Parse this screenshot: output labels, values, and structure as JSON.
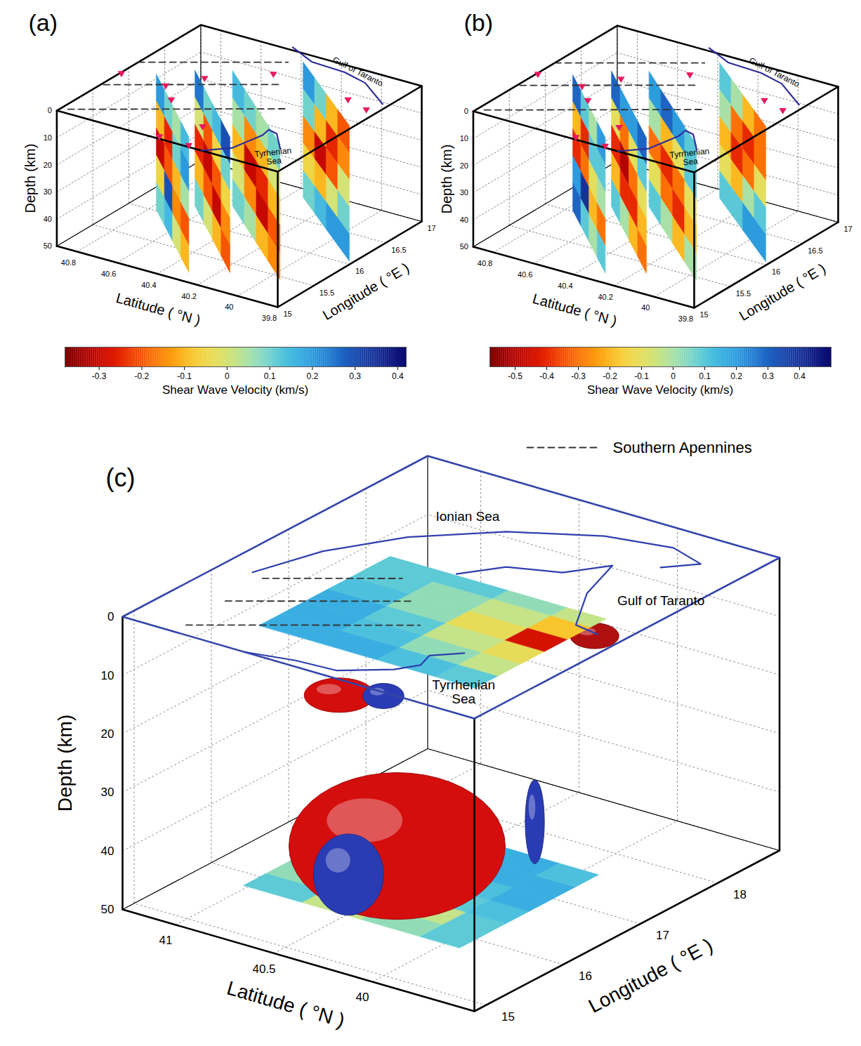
{
  "chart_data": [
    {
      "type": "3d_slices",
      "panel": "(a)",
      "xlabel": "Longitude ( °E )",
      "ylabel": "Latitude ( °N )",
      "zlabel": "Depth (km)",
      "xlim": [
        15,
        17
      ],
      "ylim": [
        39.8,
        40.9
      ],
      "zlim": [
        0,
        50
      ],
      "xticks": [
        15,
        15.5,
        16,
        16.5,
        17
      ],
      "yticks": [
        39.8,
        40,
        40.2,
        40.4,
        40.6,
        40.8
      ],
      "zticks": [
        0,
        10,
        20,
        30,
        40,
        50
      ],
      "grid": true,
      "colorbar": {
        "label": "Shear Wave Velocity (km/s)",
        "lim": [
          -0.38,
          0.42
        ],
        "ticks": [
          -0.3,
          -0.2,
          -0.1,
          0,
          0.1,
          0.2,
          0.3,
          0.4
        ]
      },
      "depth_edges": [
        0,
        10,
        20,
        30,
        40,
        50
      ],
      "slices": [
        {
          "start": [
            16.02,
            40.77
          ],
          "end": [
            15.16,
            40.3
          ],
          "values": [
            [
              0.2,
              0.1,
              0.05,
              0.15
            ],
            [
              -0.1,
              -0.25,
              0.1,
              0.2
            ],
            [
              -0.3,
              -0.2,
              -0.1,
              0.05
            ],
            [
              -0.05,
              0.3,
              -0.15,
              -0.2
            ],
            [
              0.1,
              0.15,
              0,
              -0.1
            ]
          ]
        },
        {
          "start": [
            16.25,
            40.66
          ],
          "end": [
            15.34,
            40.16
          ],
          "values": [
            [
              0.25,
              0.1,
              0.15,
              0.3
            ],
            [
              0,
              -0.2,
              -0.05,
              0.1
            ],
            [
              -0.25,
              -0.3,
              -0.2,
              -0.05
            ],
            [
              -0.1,
              -0.2,
              -0.3,
              -0.15
            ],
            [
              0.1,
              0,
              -0.1,
              -0.2
            ]
          ]
        },
        {
          "start": [
            16.41,
            40.53
          ],
          "end": [
            15.45,
            39.95
          ],
          "values": [
            [
              0.15,
              0.1,
              0.05,
              0.1
            ],
            [
              0.05,
              -0.15,
              -0.1,
              0
            ],
            [
              -0.1,
              -0.3,
              -0.25,
              -0.1
            ],
            [
              0,
              -0.15,
              -0.3,
              -0.2
            ],
            [
              0.1,
              0.05,
              -0.1,
              -0.15
            ]
          ]
        },
        {
          "start": [
            16.86,
            40.34
          ],
          "end": [
            16.05,
            39.82
          ],
          "values": [
            [
              0.2,
              0.1,
              -0.1,
              -0.2
            ],
            [
              0.1,
              -0.1,
              -0.25,
              -0.15
            ],
            [
              -0.15,
              -0.3,
              -0.2,
              0
            ],
            [
              -0.05,
              -0.1,
              0,
              0.1
            ],
            [
              0.1,
              0.15,
              0.2,
              0.2
            ]
          ]
        }
      ],
      "stations": {
        "lon": [
          15.87,
          15.87,
          16.16,
          16.53,
          15.67,
          15.03,
          15.02,
          15.38,
          16.45,
          16.37
        ],
        "lat": [
          40.89,
          40.67,
          40.58,
          40.37,
          40.57,
          40.4,
          40.25,
          40.31,
          39.97,
          39.85
        ],
        "color": "#e8185d",
        "marker": "triangle-down"
      },
      "dashed_lines": {
        "color": "#333333",
        "line_style": "dashed",
        "lines": [
          [
            [
              16.13,
              40.9
            ],
            [
              16.79,
              40.39
            ]
          ],
          [
            [
              15.62,
              40.89
            ],
            [
              16.4,
              40.29
            ]
          ],
          [
            [
              15.07,
              40.87
            ],
            [
              16.04,
              40.13
            ]
          ]
        ]
      },
      "coastlines": {
        "color": "#2e2e9a",
        "lines": [
          [
            [
              17.05,
              40.46
            ],
            [
              16.9,
              40.31
            ],
            [
              16.88,
              40.14
            ],
            [
              16.8,
              40.01
            ],
            [
              16.54,
              39.83
            ]
          ],
          [
            [
              15.0,
              40.18
            ],
            [
              15.18,
              40.09
            ],
            [
              15.51,
              40.06
            ],
            [
              15.63,
              40.07
            ],
            [
              15.6,
              40.02
            ],
            [
              15.37,
              39.92
            ]
          ]
        ]
      },
      "labels": [
        {
          "text": "Gulf of Taranto",
          "lon": 16.95,
          "lat": 40.1
        },
        {
          "text": "Tyrhenian Sea",
          "lon": 15.22,
          "lat": 39.9
        }
      ]
    },
    {
      "type": "3d_slices",
      "panel": "(b)",
      "xlabel": "Longitude ( °E )",
      "ylabel": "Latitude ( °N )",
      "zlabel": "Depth (km)",
      "xlim": [
        15,
        17
      ],
      "ylim": [
        39.8,
        40.9
      ],
      "zlim": [
        0,
        50
      ],
      "xticks": [
        15,
        15.5,
        16,
        16.5,
        17
      ],
      "yticks": [
        39.8,
        40,
        40.2,
        40.4,
        40.6,
        40.8
      ],
      "zticks": [
        0,
        10,
        20,
        30,
        40,
        50
      ],
      "grid": true,
      "colorbar": {
        "label": "Shear Wave Velocity (km/s)",
        "lim": [
          -0.58,
          0.5
        ],
        "ticks": [
          -0.5,
          -0.4,
          -0.3,
          -0.2,
          -0.1,
          0,
          0.1,
          0.2,
          0.3,
          0.4
        ]
      },
      "depth_edges": [
        0,
        10,
        20,
        30,
        40,
        50
      ],
      "slices": [
        {
          "start": [
            16.02,
            40.77
          ],
          "end": [
            15.16,
            40.3
          ],
          "values": [
            [
              0.3,
              0.1,
              0,
              0.2
            ],
            [
              -0.2,
              -0.4,
              0.1,
              0.1
            ],
            [
              -0.4,
              -0.3,
              -0.1,
              0
            ],
            [
              0.2,
              0.4,
              -0.2,
              -0.3
            ],
            [
              0.3,
              0.1,
              0,
              0.1
            ]
          ]
        },
        {
          "start": [
            16.25,
            40.66
          ],
          "end": [
            15.34,
            40.16
          ],
          "values": [
            [
              0.3,
              0.2,
              0.2,
              0.3
            ],
            [
              -0.1,
              -0.3,
              -0.1,
              0.1
            ],
            [
              -0.4,
              -0.5,
              -0.3,
              -0.1
            ],
            [
              -0.2,
              -0.4,
              -0.4,
              -0.2
            ],
            [
              0.1,
              0,
              -0.2,
              -0.3
            ]
          ]
        },
        {
          "start": [
            16.41,
            40.53
          ],
          "end": [
            15.45,
            39.95
          ],
          "values": [
            [
              0.2,
              0.3,
              0.2,
              0.1
            ],
            [
              0,
              -0.2,
              -0.1,
              0.1
            ],
            [
              -0.3,
              -0.4,
              -0.3,
              -0.1
            ],
            [
              -0.1,
              -0.3,
              -0.4,
              -0.2
            ],
            [
              0.1,
              0,
              -0.2,
              0
            ]
          ]
        },
        {
          "start": [
            16.86,
            40.34
          ],
          "end": [
            16.05,
            39.82
          ],
          "values": [
            [
              0.1,
              0,
              -0.2,
              -0.3
            ],
            [
              0,
              -0.3,
              -0.4,
              -0.3
            ],
            [
              -0.2,
              -0.4,
              -0.3,
              -0.1
            ],
            [
              -0.1,
              -0.2,
              0,
              0.1
            ],
            [
              0.1,
              0.1,
              0.2,
              0.2
            ]
          ]
        }
      ],
      "stations": {
        "lon": [
          15.87,
          15.87,
          16.16,
          16.53,
          15.67,
          15.03,
          15.02,
          15.38,
          16.45,
          16.37
        ],
        "lat": [
          40.89,
          40.67,
          40.58,
          40.37,
          40.57,
          40.4,
          40.25,
          40.31,
          39.97,
          39.85
        ],
        "color": "#e8185d",
        "marker": "triangle-down"
      },
      "dashed_lines": {
        "color": "#333333",
        "line_style": "dashed",
        "lines": [
          [
            [
              16.13,
              40.9
            ],
            [
              16.79,
              40.39
            ]
          ],
          [
            [
              15.62,
              40.89
            ],
            [
              16.4,
              40.29
            ]
          ],
          [
            [
              15.07,
              40.87
            ],
            [
              16.04,
              40.13
            ]
          ]
        ]
      },
      "coastlines": {
        "color": "#2e2e9a",
        "lines": [
          [
            [
              17.05,
              40.46
            ],
            [
              16.9,
              40.31
            ],
            [
              16.88,
              40.14
            ],
            [
              16.8,
              40.01
            ],
            [
              16.54,
              39.83
            ]
          ],
          [
            [
              15.0,
              40.18
            ],
            [
              15.18,
              40.09
            ],
            [
              15.51,
              40.06
            ],
            [
              15.63,
              40.07
            ],
            [
              15.6,
              40.02
            ],
            [
              15.37,
              39.92
            ]
          ]
        ]
      },
      "labels": [
        {
          "text": "Gulf of Taranto",
          "lon": 16.95,
          "lat": 40.1
        },
        {
          "text": "Tyrrhenian Sea",
          "lon": 15.22,
          "lat": 39.9
        }
      ]
    },
    {
      "type": "3d_isosurface",
      "panel": "(c)",
      "xlabel": "Longitude ( °E )",
      "ylabel": "Latitude ( °N )",
      "zlabel": "Depth (km)",
      "xlim": [
        14.85,
        18.8
      ],
      "ylim": [
        39.48,
        41.27
      ],
      "zlim": [
        0,
        50
      ],
      "xticks": [
        15,
        16,
        17,
        18
      ],
      "yticks": [
        40,
        40.5,
        41
      ],
      "zticks": [
        0,
        10,
        20,
        30,
        40,
        50
      ],
      "grid": true,
      "clim": [
        -0.4,
        0.4
      ],
      "legend": "top-right",
      "planes": [
        {
          "depth": 48,
          "lon_edges": [
            15.6,
            15.9,
            16.2,
            16.5,
            16.8,
            17.1,
            17.4
          ],
          "lat_edges": [
            40.95,
            40.65,
            40.35,
            40.05,
            39.85
          ],
          "values": [
            [
              0.1,
              0.05,
              0.1,
              0.15,
              0.15,
              0.15
            ],
            [
              0,
              -0.05,
              0.05,
              0.12,
              0.15,
              0.15
            ],
            [
              0.05,
              0,
              0.1,
              0.12,
              0.15,
              0.15
            ],
            [
              0.1,
              0.1,
              0.12,
              0.15,
              0.15,
              0.12
            ]
          ]
        },
        {
          "depth": 5,
          "lon_edges": [
            15.8,
            16.1,
            16.4,
            16.7,
            17.0,
            17.3,
            17.5
          ],
          "lat_edges": [
            40.95,
            40.65,
            40.35,
            40.05,
            39.85
          ],
          "values": [
            [
              0.15,
              0.15,
              0.15,
              0.12,
              0.1,
              0.1
            ],
            [
              0.15,
              0.12,
              0.1,
              0.05,
              0.05,
              0.1
            ],
            [
              0.12,
              0.05,
              0,
              -0.05,
              0,
              0.05
            ],
            [
              0.1,
              0,
              -0.05,
              -0.3,
              -0.1,
              0
            ]
          ]
        }
      ],
      "blobs": [
        {
          "lon": 15.81,
          "lat": 39.55,
          "depth": 25,
          "lon_span": 0.12,
          "lat_span": 0.05,
          "depth_span": 13,
          "color": "#2a3cb4"
        },
        {
          "lon": 15.63,
          "lat": 40.18,
          "depth": 34,
          "lon_span": 1.4,
          "lat_span": 0.55,
          "depth_span": 10,
          "color": "#d40d0d"
        },
        {
          "lon": 15.79,
          "lat": 40.49,
          "depth": 43,
          "lon_span": 0.45,
          "lat_span": 0.18,
          "depth_span": 9,
          "color": "#2a3cb4"
        },
        {
          "lon": 15.9,
          "lat": 40.58,
          "depth": 14,
          "lon_span": 0.45,
          "lat_span": 0.18,
          "depth_span": 1,
          "color": "#d40d0d"
        },
        {
          "lon": 16.09,
          "lat": 40.43,
          "depth": 14,
          "lon_span": 0.25,
          "lat_span": 0.11,
          "depth_span": 1.5,
          "color": "#2a3cb4"
        },
        {
          "lon": 16.99,
          "lat": 39.71,
          "depth": 3,
          "lon_span": 0.3,
          "lat_span": 0.13,
          "depth_span": 1,
          "color": "#b01010"
        },
        {
          "lon": 16.72,
          "lat": 40.64,
          "depth": 2,
          "lon_span": 0.07,
          "lat_span": 0.03,
          "depth_span": 0.2,
          "color": "#2a3cb4"
        }
      ],
      "dashed_lines": {
        "name": "Southern Apennines",
        "color": "#333333",
        "line_style": "dashed",
        "lines": [
          [
            [
              16.1,
              41.05
            ],
            [
              16.74,
              40.59
            ]
          ],
          [
            [
              15.57,
              41.03
            ],
            [
              16.42,
              40.42
            ]
          ],
          [
            [
              15.01,
              41.01
            ],
            [
              16.08,
              40.24
            ]
          ]
        ]
      },
      "coastlines": {
        "color": "#2e3fae",
        "lines": [
          [
            [
              16.15,
              41.12
            ],
            [
              16.81,
              41.02
            ],
            [
              17.42,
              40.83
            ],
            [
              17.96,
              40.54
            ],
            [
              18.34,
              40.19
            ],
            [
              18.47,
              39.89
            ],
            [
              18.34,
              39.7
            ],
            [
              18.1,
              39.81
            ]
          ],
          [
            [
              17.06,
              40.44
            ],
            [
              17.4,
              40.32
            ],
            [
              17.57,
              40.1
            ],
            [
              17.91,
              39.98
            ],
            [
              17.35,
              39.89
            ],
            [
              16.8,
              39.73
            ],
            [
              16.75,
              39.6
            ]
          ],
          [
            [
              14.85,
              40.65
            ],
            [
              14.95,
              40.43
            ],
            [
              14.98,
              40.23
            ],
            [
              15.26,
              40.05
            ],
            [
              15.45,
              39.99
            ],
            [
              15.64,
              40.02
            ],
            [
              15.84,
              39.92
            ]
          ]
        ]
      },
      "labels": [
        {
          "text": "Ionian Sea",
          "lon": 18.02,
          "lat": 40.76
        },
        {
          "text": "Gulf of Taranto",
          "lon": 17.57,
          "lat": 39.6
        },
        {
          "text": "Tyrrhenian Sea",
          "lon": 15.22,
          "lat": 39.68
        }
      ]
    }
  ]
}
